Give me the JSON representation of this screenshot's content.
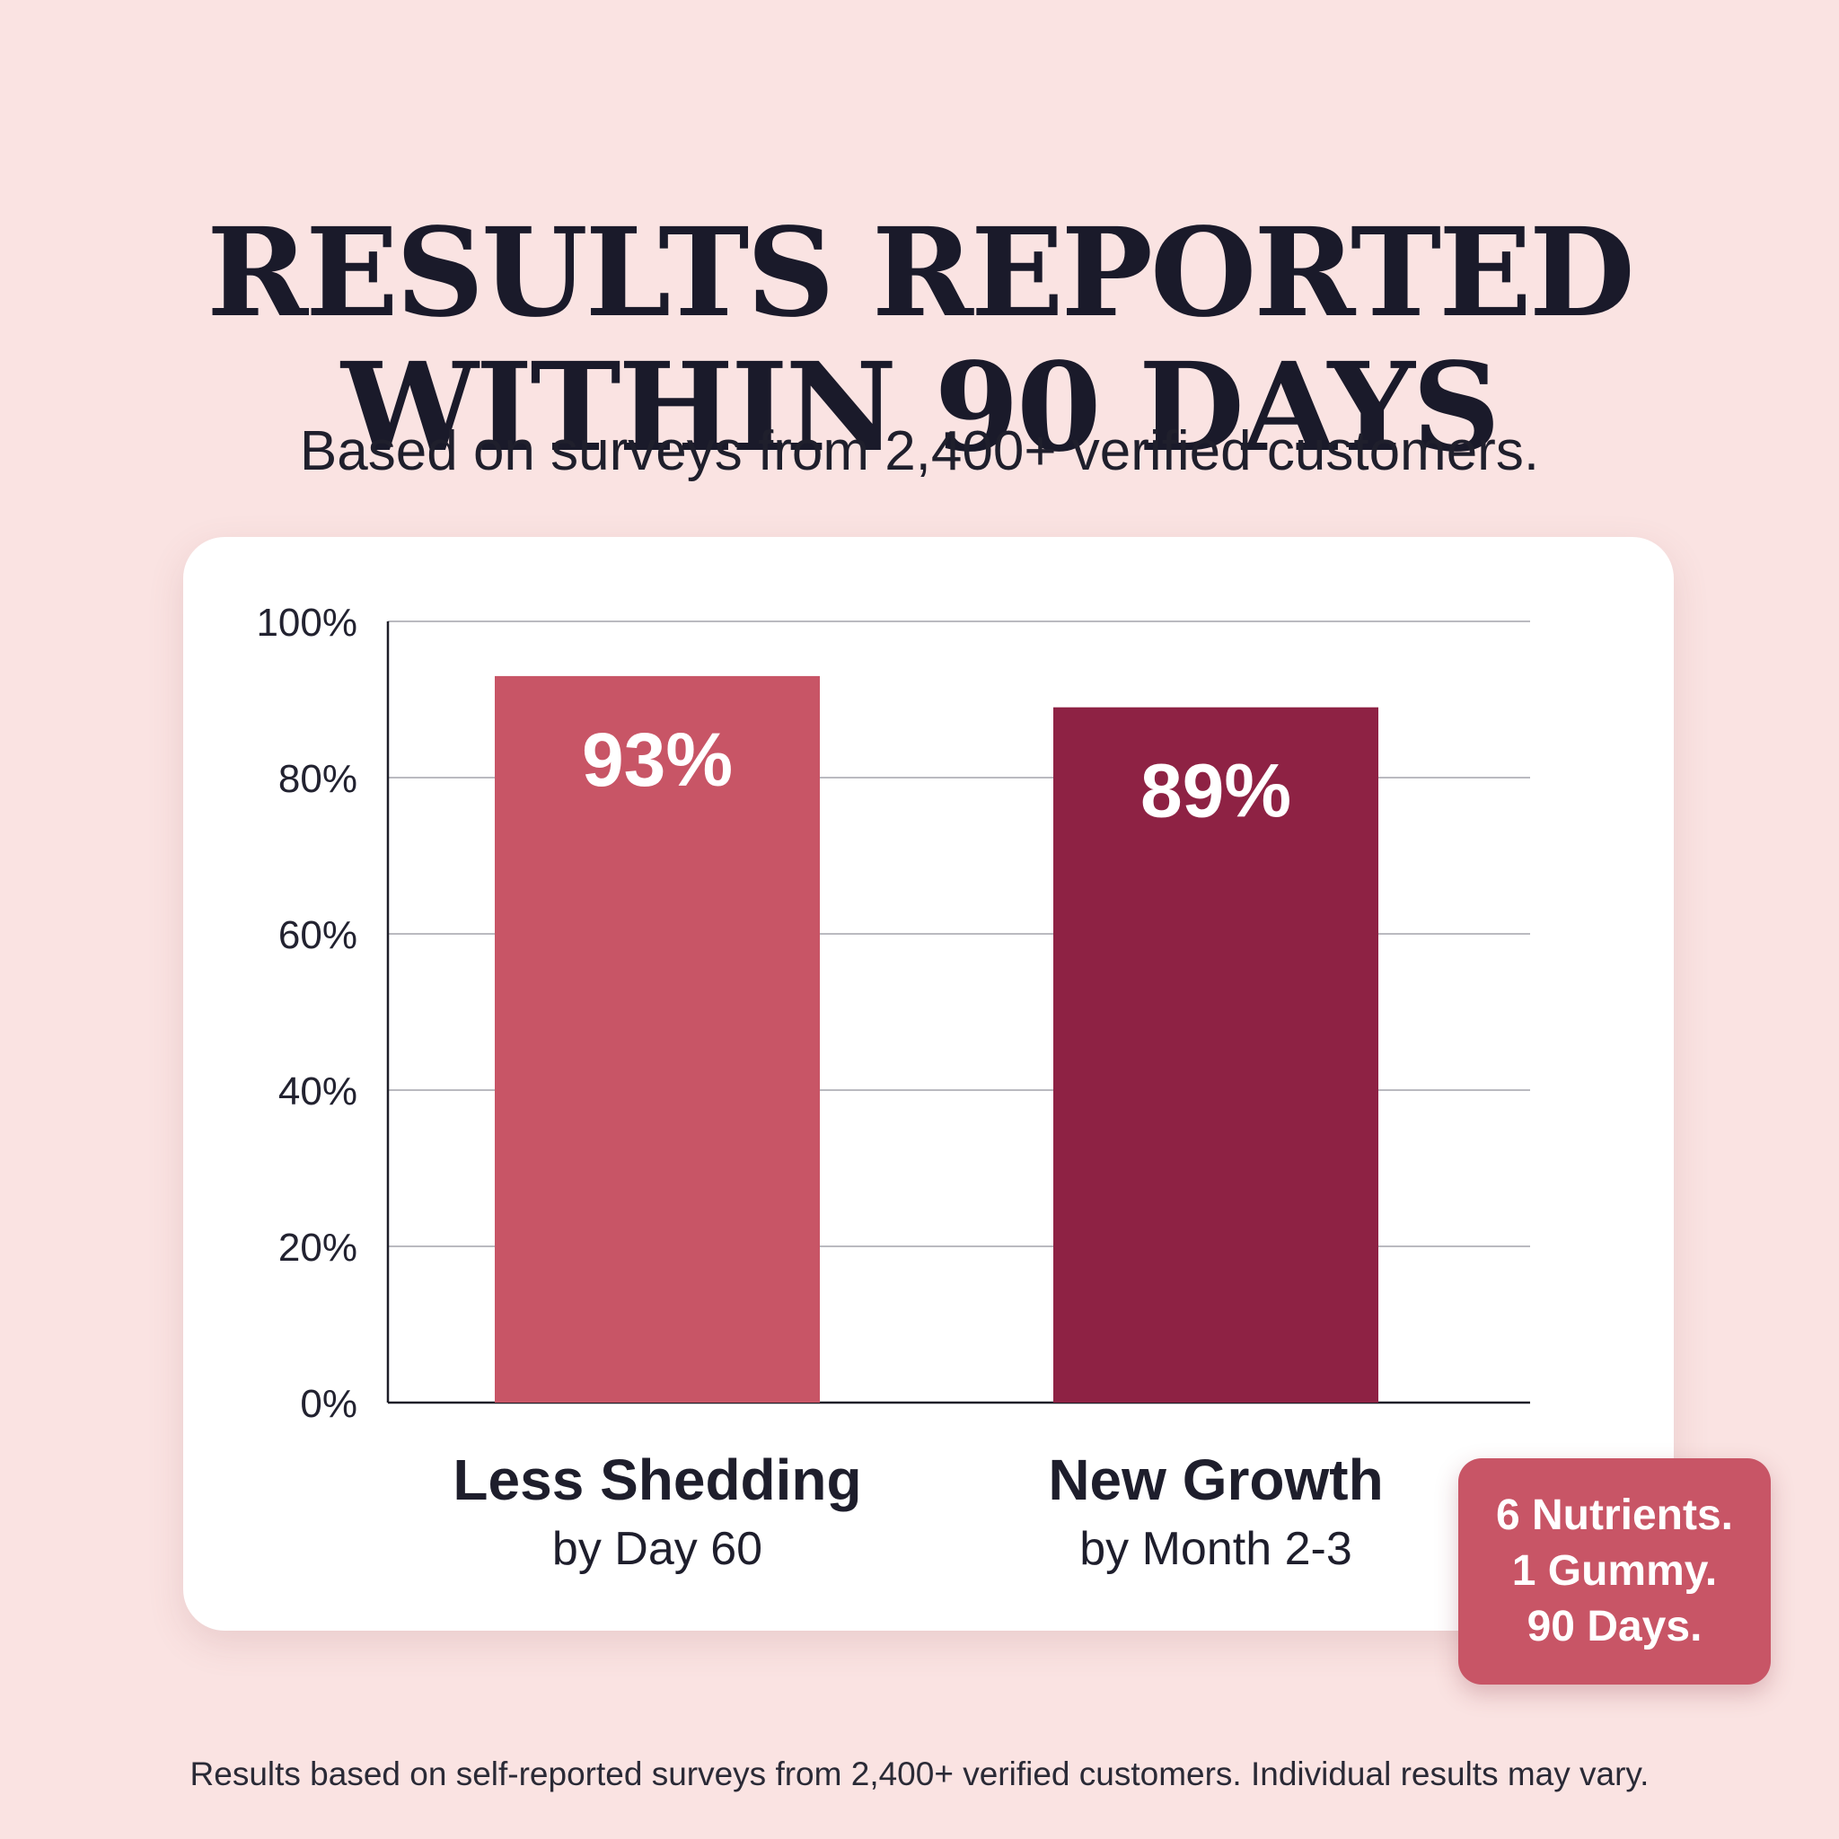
{
  "header": {
    "title_line1": "RESULTS REPORTED",
    "title_line2": "WITHIN 90 DAYS",
    "subtitle": "Based on surveys from 2,400+ verified customers."
  },
  "chart_data": {
    "type": "bar",
    "categories": [
      "Less Shedding",
      "New Growth"
    ],
    "category_sublabels": [
      "by Day 60",
      "by Month 2-3"
    ],
    "values": [
      93,
      89
    ],
    "data_labels": [
      "93%",
      "89%"
    ],
    "bar_colors": [
      "#c85566",
      "#8e2244"
    ],
    "ylim": [
      0,
      100
    ],
    "yticks": [
      0,
      20,
      40,
      60,
      80,
      100
    ],
    "ytick_labels": [
      "0%",
      "20%",
      "40%",
      "60%",
      "80%",
      "100%"
    ],
    "grid": true
  },
  "badge": {
    "line1": "6 Nutrients.",
    "line2": "1 Gummy.",
    "line3": "90 Days.",
    "color": "#c85566"
  },
  "footnote": "Results based on self-reported surveys from 2,400+ verified customers. Individual results may vary.",
  "colors": {
    "background": "#fae3e2",
    "card": "#ffffff",
    "text": "#1b1b2b"
  }
}
